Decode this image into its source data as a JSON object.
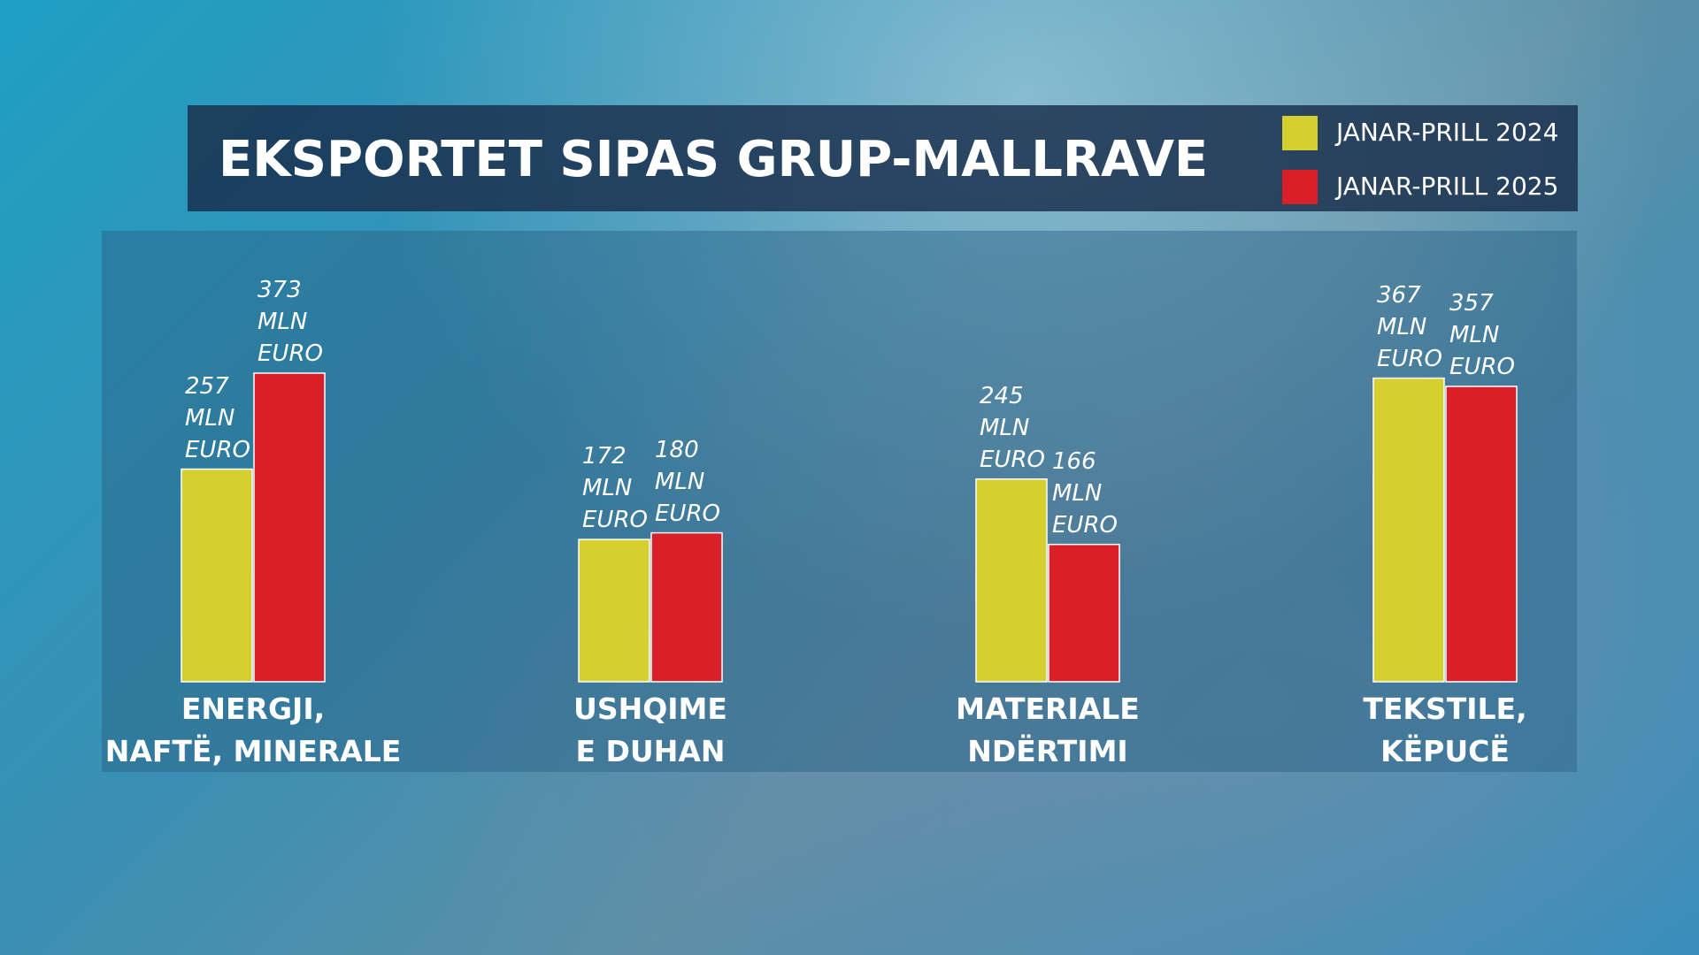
{
  "chart_data": {
    "type": "bar",
    "title": "EKSPORTET SIPAS GRUP-MALLRAVE",
    "categories": [
      "ENERGJI,\nNAFTË, MINERALE",
      "USHQIME\nE DUHAN",
      "MATERIALE\nNDËRTIMI",
      "TEKSTILE,\nKËPUCË"
    ],
    "series": [
      {
        "name": "JANAR-PRILL 2024",
        "color": "#d5cf30",
        "values": [
          257,
          172,
          245,
          367
        ],
        "value_labels": [
          "257\nMLN\nEURO",
          "172\nMLN\nEURO",
          "245\nMLN\nEURO",
          "367\nMLN\nEURO"
        ]
      },
      {
        "name": "JANAR-PRILL 2025",
        "color": "#d92028",
        "values": [
          373,
          180,
          166,
          357
        ],
        "value_labels": [
          "373\nMLN\nEURO",
          "180\nMLN\nEURO",
          "166\nMLN\nEURO",
          "357\nMLN\nEURO"
        ]
      }
    ],
    "legend": "top-right"
  }
}
